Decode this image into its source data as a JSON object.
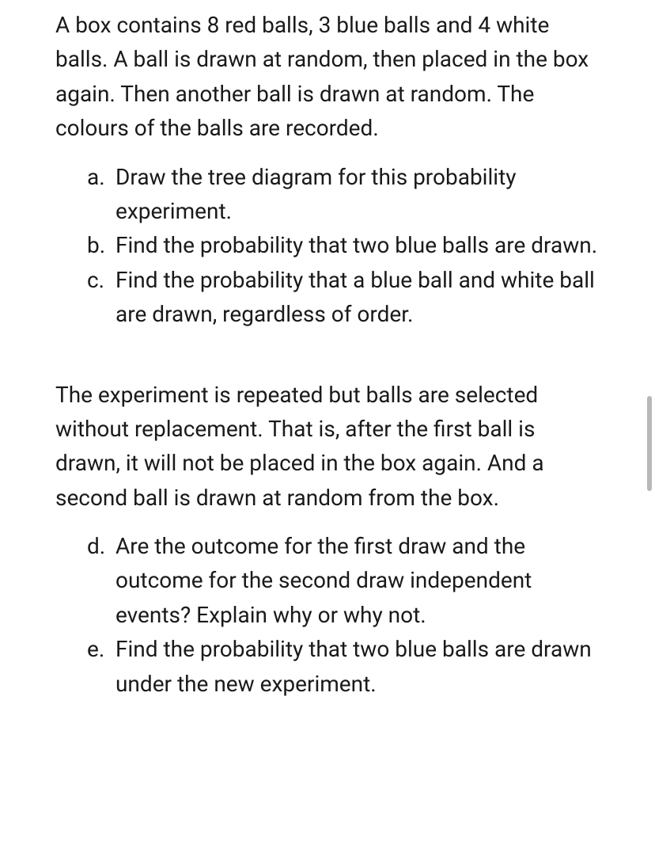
{
  "intro": "A box contains 8 red balls, 3 blue balls and 4 white balls. A ball is drawn at random, then placed in the box again. Then another ball is drawn at random. The colours of the balls are recorded.",
  "list1": [
    {
      "marker": "a.",
      "text": "Draw the tree diagram for this probability experiment."
    },
    {
      "marker": "b.",
      "text": "Find the probability that two blue balls are drawn."
    },
    {
      "marker": "c.",
      "text": "Find the probability that a blue ball and white ball are drawn, regardless of order."
    }
  ],
  "mid": "The experiment is repeated but balls are selected without replacement. That is, after the first ball is drawn, it will not be placed in the box again. And a second ball is drawn at random from the box.",
  "list2": [
    {
      "marker": "d.",
      "text": "Are the outcome for the first draw and the outcome for the second draw independent events? Explain why or why not."
    },
    {
      "marker": "e.",
      "text": "Find the probability that two blue balls are drawn under the new experiment."
    }
  ],
  "style": {
    "text_color": "#1a1a1a",
    "background_color": "#ffffff",
    "font_size_pt": 21,
    "line_height": 1.55,
    "scrollbar_color": "#b8b8b8"
  }
}
